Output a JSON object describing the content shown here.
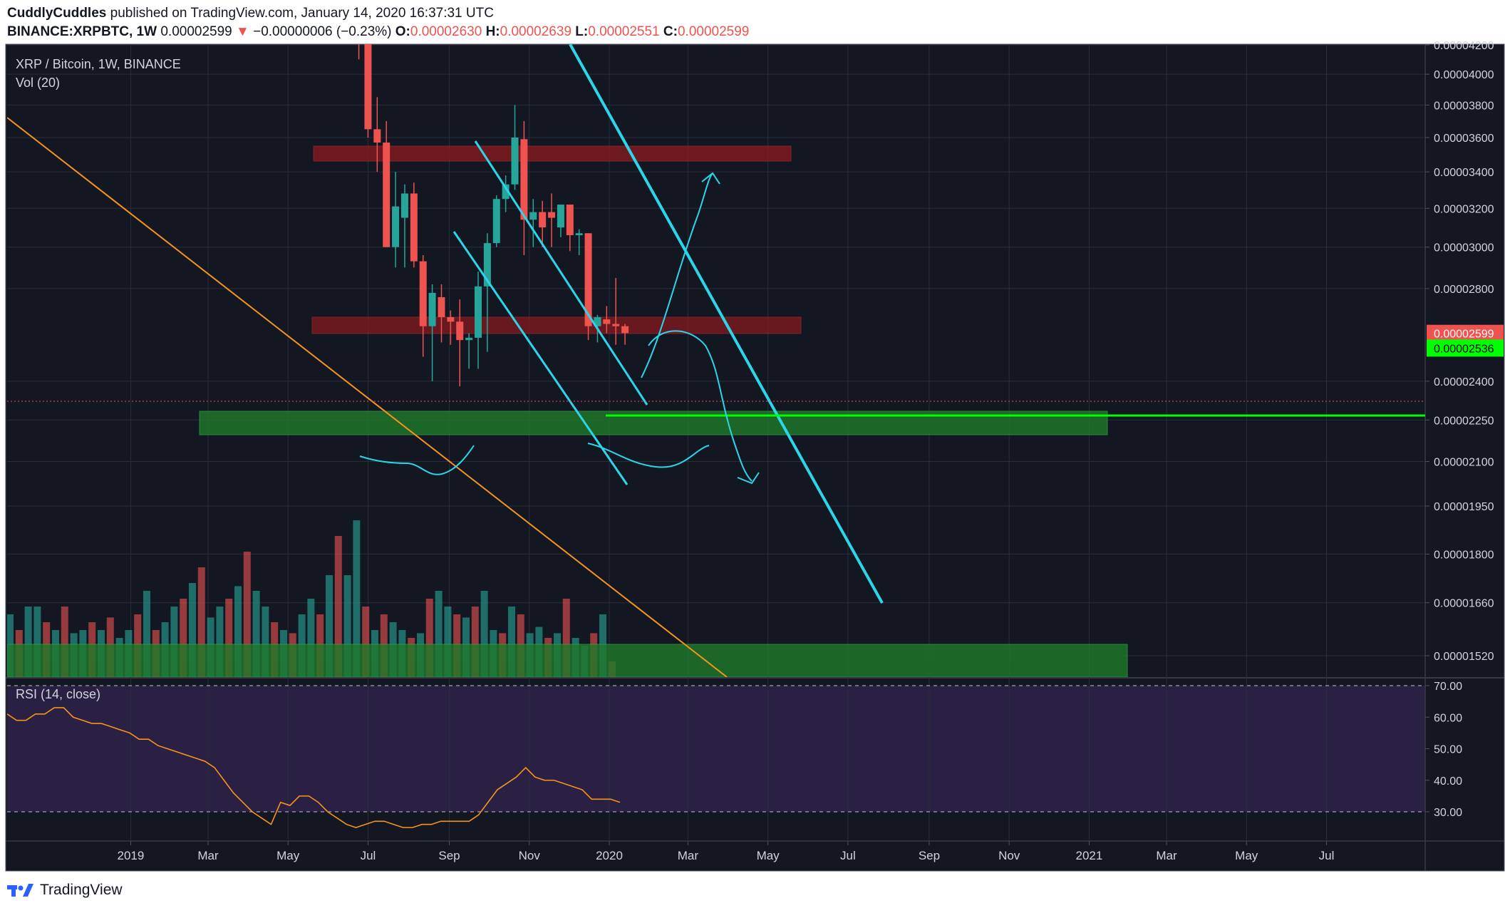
{
  "header": {
    "author": "CuddlyCuddles",
    "published_text": "published on TradingView.com, January 14, 2020 16:37:31 UTC",
    "symbol_line": "BINANCE:XRPBTC, 1W",
    "last_value": "0.00002599",
    "change_arrow": "▼",
    "change_text": "−0.00000006 (−0.23%)",
    "o_label": "O:",
    "o_value": "0.00002630",
    "h_label": "H:",
    "h_value": "0.00002639",
    "l_label": "L:",
    "l_value": "0.00002551",
    "c_label": "C:",
    "c_value": "0.00002599"
  },
  "legend": {
    "symbol_title": "XRP / Bitcoin, 1W, BINANCE",
    "volume_title": "Vol (20)",
    "rsi_title": "RSI (14, close)"
  },
  "footer": {
    "brand": "TradingView",
    "logo_icon": "tradingview-logo-icon"
  },
  "colors": {
    "background": "#131722",
    "up": "#26a69a",
    "down": "#ef5350",
    "cyan_lines": "#2bd6ea",
    "orange_line": "#f7931a",
    "support_zone": "#1f7a2a",
    "resistance_zone": "#8b1a1f",
    "highlight_line": "#00ff00",
    "rsi_fill": "#2a2043"
  },
  "chart_data": [
    {
      "type": "candlestick",
      "title": "XRP / Bitcoin, 1W, BINANCE",
      "y_scale": "log",
      "y_tick_labels": [
        "0.00004200",
        "0.00004000",
        "0.00003800",
        "0.00003600",
        "0.00003400",
        "0.00003200",
        "0.00003000",
        "0.00002800",
        "0.00002599",
        "0.00002536",
        "0.00002400",
        "0.00002250",
        "0.00002100",
        "0.00001950",
        "0.00001800",
        "0.00001660",
        "0.00001520"
      ],
      "x_tick_labels": [
        "2019",
        "Mar",
        "May",
        "Jul",
        "Sep",
        "Nov",
        "2020",
        "Mar",
        "May",
        "Jul",
        "Sep",
        "Nov",
        "2021",
        "Mar",
        "May",
        "Jul"
      ],
      "price_labels": [
        {
          "value": "0.00002599",
          "role": "last-price"
        },
        {
          "value": "0.00002536",
          "role": "horizontal-line"
        }
      ],
      "candles": [
        {
          "date": "2019-06-24",
          "o": 4.4e-05,
          "h": 4.5e-05,
          "l": 4.1e-05,
          "c": 4.3e-05
        },
        {
          "date": "2019-07-01",
          "o": 4.4e-05,
          "h": 4.5e-05,
          "l": 3.6e-05,
          "c": 3.65e-05
        },
        {
          "date": "2019-07-08",
          "o": 3.65e-05,
          "h": 3.85e-05,
          "l": 3.4e-05,
          "c": 3.57e-05
        },
        {
          "date": "2019-07-15",
          "o": 3.57e-05,
          "h": 3.7e-05,
          "l": 3e-05,
          "c": 3e-05
        },
        {
          "date": "2019-07-22",
          "o": 3e-05,
          "h": 3.4e-05,
          "l": 2.9e-05,
          "c": 3.21e-05
        },
        {
          "date": "2019-07-29",
          "o": 3.15e-05,
          "h": 3.33e-05,
          "l": 2.9e-05,
          "c": 3.28e-05
        },
        {
          "date": "2019-08-05",
          "o": 3.28e-05,
          "h": 3.34e-05,
          "l": 2.9e-05,
          "c": 2.93e-05
        },
        {
          "date": "2019-08-12",
          "o": 2.93e-05,
          "h": 2.96e-05,
          "l": 2.5e-05,
          "c": 2.63e-05
        },
        {
          "date": "2019-08-19",
          "o": 2.63e-05,
          "h": 2.82e-05,
          "l": 2.4e-05,
          "c": 2.78e-05
        },
        {
          "date": "2019-08-26",
          "o": 2.76e-05,
          "h": 2.82e-05,
          "l": 2.56e-05,
          "c": 2.67e-05
        },
        {
          "date": "2019-09-02",
          "o": 2.67e-05,
          "h": 2.7e-05,
          "l": 2.55e-05,
          "c": 2.65e-05
        },
        {
          "date": "2019-09-09",
          "o": 2.65e-05,
          "h": 2.75e-05,
          "l": 2.38e-05,
          "c": 2.57e-05
        },
        {
          "date": "2019-09-16",
          "o": 2.57e-05,
          "h": 2.6e-05,
          "l": 2.45e-05,
          "c": 2.58e-05
        },
        {
          "date": "2019-09-23",
          "o": 2.58e-05,
          "h": 2.88e-05,
          "l": 2.45e-05,
          "c": 2.81e-05
        },
        {
          "date": "2019-09-30",
          "o": 2.81e-05,
          "h": 3.07e-05,
          "l": 2.52e-05,
          "c": 3.02e-05
        },
        {
          "date": "2019-10-07",
          "o": 3.02e-05,
          "h": 3.27e-05,
          "l": 3e-05,
          "c": 3.25e-05
        },
        {
          "date": "2019-10-14",
          "o": 3.25e-05,
          "h": 3.38e-05,
          "l": 3.18e-05,
          "c": 3.33e-05
        },
        {
          "date": "2019-10-21",
          "o": 3.33e-05,
          "h": 3.8e-05,
          "l": 3.3e-05,
          "c": 3.6e-05
        },
        {
          "date": "2019-10-28",
          "o": 3.59e-05,
          "h": 3.7e-05,
          "l": 2.96e-05,
          "c": 3.14e-05
        },
        {
          "date": "2019-11-04",
          "o": 3.14e-05,
          "h": 3.25e-05,
          "l": 3e-05,
          "c": 3.18e-05
        },
        {
          "date": "2019-11-11",
          "o": 3.18e-05,
          "h": 3.24e-05,
          "l": 3e-05,
          "c": 3.1e-05
        },
        {
          "date": "2019-11-18",
          "o": 3.18e-05,
          "h": 3.28e-05,
          "l": 3e-05,
          "c": 3.15e-05
        },
        {
          "date": "2019-11-25",
          "o": 3.1e-05,
          "h": 3.2e-05,
          "l": 3.05e-05,
          "c": 3.22e-05
        },
        {
          "date": "2019-12-02",
          "o": 3.22e-05,
          "h": 3.22e-05,
          "l": 2.98e-05,
          "c": 3.06e-05
        },
        {
          "date": "2019-12-09",
          "o": 3.06e-05,
          "h": 3.09e-05,
          "l": 2.96e-05,
          "c": 3.07e-05
        },
        {
          "date": "2019-12-16",
          "o": 3.07e-05,
          "h": 3.07e-05,
          "l": 2.57e-05,
          "c": 2.63e-05
        },
        {
          "date": "2019-12-23",
          "o": 2.63e-05,
          "h": 2.68e-05,
          "l": 2.56e-05,
          "c": 2.67e-05
        },
        {
          "date": "2019-12-30",
          "o": 2.66e-05,
          "h": 2.72e-05,
          "l": 2.6e-05,
          "c": 2.64e-05
        },
        {
          "date": "2020-01-06",
          "o": 2.64e-05,
          "h": 2.85e-05,
          "l": 2.55e-05,
          "c": 2.63e-05
        },
        {
          "date": "2020-01-13",
          "o": 2.63e-05,
          "h": 2.64e-05,
          "l": 2.55e-05,
          "c": 2.6e-05
        }
      ]
    },
    {
      "type": "line",
      "title": "RSI (14, close)",
      "y_tick_labels": [
        "70.00",
        "60.00",
        "50.00",
        "40.00",
        "30.00"
      ],
      "bands": [
        30,
        70
      ],
      "values": [
        61,
        59,
        59,
        61,
        61,
        63,
        63,
        60,
        59,
        58,
        58,
        57,
        56,
        55,
        53,
        53,
        51,
        50,
        49,
        48,
        47,
        46,
        44,
        40,
        36,
        33,
        30,
        28,
        26,
        33,
        32,
        35,
        35,
        33,
        30,
        28,
        26,
        25,
        26,
        27,
        27,
        26,
        25,
        25,
        26,
        26,
        27,
        27,
        27,
        27,
        29,
        33,
        37,
        39,
        41,
        44,
        41,
        40,
        40,
        39,
        38,
        37,
        34,
        34,
        34,
        33
      ]
    }
  ]
}
